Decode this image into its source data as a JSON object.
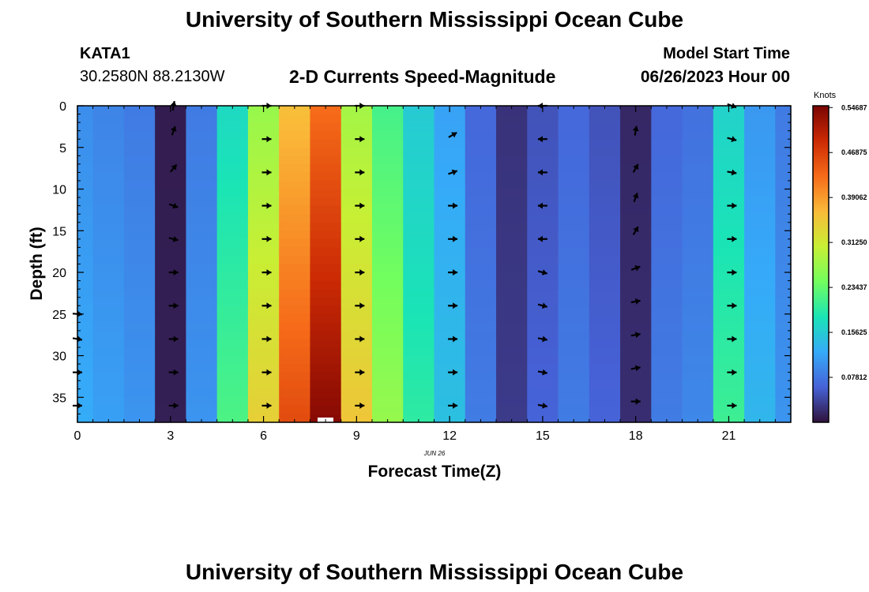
{
  "header": {
    "title": "University of Southern Mississippi Ocean Cube",
    "repeat_title": "University of Southern Mississippi Ocean Cube",
    "station_id": "KATA1",
    "station_coords": "30.2580N  88.2130W",
    "model_start_label": "Model Start Time",
    "model_start_value": "06/26/2023 Hour 00"
  },
  "chart_data": {
    "type": "heatmap",
    "title": "2-D Currents Speed-Magnitude",
    "xlabel": "Forecast Time(Z)",
    "ylabel": "Depth (ft)",
    "date_label": "JUN 26",
    "x_range": [
      0,
      23
    ],
    "y_range": [
      0,
      38
    ],
    "y_inverted": true,
    "x_ticks": [
      0,
      3,
      6,
      9,
      12,
      15,
      18,
      21
    ],
    "y_ticks": [
      0,
      5,
      10,
      15,
      20,
      25,
      30,
      35
    ],
    "hours": [
      0,
      1,
      2,
      3,
      4,
      5,
      6,
      7,
      8,
      9,
      10,
      11,
      12,
      13,
      14,
      15,
      16,
      17,
      18,
      19,
      20,
      21,
      22,
      23
    ],
    "profile_speeds_knots": [
      0.12,
      0.11,
      0.1,
      0.01,
      0.1,
      0.21,
      0.33,
      0.44,
      0.52,
      0.34,
      0.26,
      0.19,
      0.14,
      0.08,
      0.03,
      0.06,
      0.08,
      0.06,
      0.02,
      0.08,
      0.09,
      0.2,
      0.13,
      0.1
    ],
    "colorbar": {
      "label": "Knots",
      "min": 0,
      "max": 0.55,
      "tick_labels": [
        "0.54687",
        "0.46875",
        "0.39062",
        "0.31250",
        "0.23437",
        "0.15625",
        "0.07812"
      ],
      "tick_values": [
        0.54687,
        0.46875,
        0.390625,
        0.3125,
        0.234375,
        0.15625,
        0.078125
      ],
      "colormap": [
        "#30123b",
        "#4662d7",
        "#36aaf9",
        "#1ae4b6",
        "#72fe5e",
        "#c8ef34",
        "#faba39",
        "#f66b19",
        "#cb2a04",
        "#7a0403"
      ]
    },
    "vector_columns": [
      {
        "hour": 0,
        "depths": [
          25,
          28,
          32,
          36
        ],
        "angles_deg": [
          5,
          10,
          0,
          0
        ]
      },
      {
        "hour": 3.1,
        "depths": [
          0,
          3,
          7.5,
          12,
          16,
          20,
          24,
          28,
          32,
          36
        ],
        "angles_deg": [
          -80,
          -70,
          -50,
          20,
          15,
          0,
          0,
          0,
          0,
          0
        ]
      },
      {
        "hour": 6.1,
        "depths": [
          0,
          4,
          8,
          12,
          16,
          20,
          24,
          28,
          32,
          36
        ],
        "angles_deg": [
          0,
          0,
          0,
          0,
          0,
          0,
          0,
          0,
          0,
          0
        ]
      },
      {
        "hour": 9.1,
        "depths": [
          0,
          4,
          8,
          12,
          16,
          20,
          24,
          28,
          32,
          36
        ],
        "angles_deg": [
          0,
          0,
          0,
          0,
          0,
          0,
          0,
          0,
          0,
          0
        ]
      },
      {
        "hour": 12.1,
        "depths": [
          3.5,
          8,
          12,
          16,
          20,
          24,
          28,
          32,
          36
        ],
        "angles_deg": [
          -30,
          -20,
          0,
          0,
          0,
          0,
          0,
          0,
          0
        ]
      },
      {
        "hour": 15,
        "depths": [
          0,
          4,
          8,
          12,
          16,
          20,
          24,
          28,
          32,
          36
        ],
        "angles_deg": [
          180,
          180,
          180,
          180,
          180,
          15,
          15,
          10,
          10,
          10
        ]
      },
      {
        "hour": 18,
        "depths": [
          3,
          7.5,
          11,
          15,
          19.5,
          23.5,
          27.5,
          31.5,
          35.5
        ],
        "angles_deg": [
          -80,
          -60,
          -70,
          -60,
          -20,
          -10,
          -10,
          -10,
          0
        ]
      },
      {
        "hour": 21.1,
        "depths": [
          0,
          4,
          8,
          12,
          16,
          20,
          24,
          28,
          32,
          36
        ],
        "angles_deg": [
          20,
          15,
          10,
          0,
          0,
          0,
          0,
          0,
          0,
          0
        ]
      }
    ]
  }
}
